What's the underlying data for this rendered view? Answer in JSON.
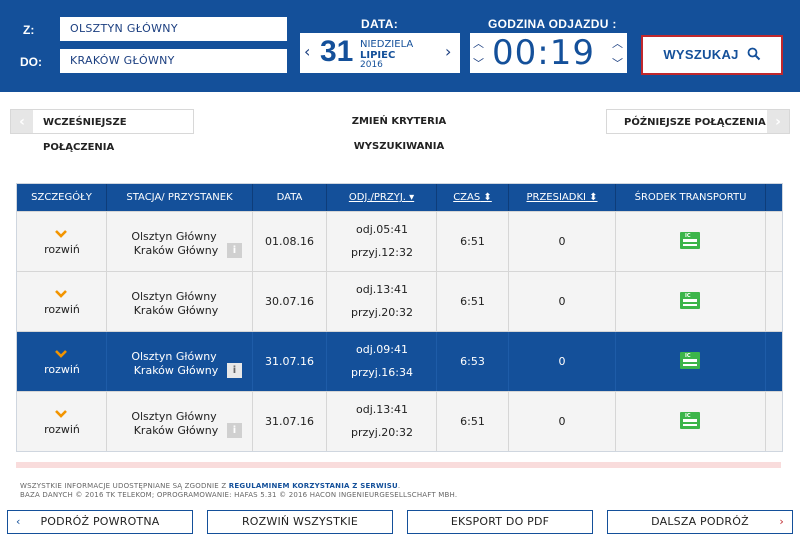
{
  "search": {
    "from_label": "Z:",
    "from_value": "OLSZTYN GŁÓWNY",
    "to_label": "DO:",
    "to_value": "KRAKÓW GŁÓWNY",
    "date_header": "DATA:",
    "day": "31",
    "weekday": "NIEDZIELA",
    "month": "LIPIEC",
    "year": "2016",
    "time_header": "GODZINA ODJAZDU :",
    "time": "00:19",
    "search_button": "WYSZUKAJ"
  },
  "nav": {
    "earlier": "WCZEŚNIEJSZE POŁĄCZENIA",
    "change": "ZMIEŃ KRYTERIA WYSZUKIWANIA",
    "later": "PÓŹNIEJSZE POŁĄCZENIA"
  },
  "table": {
    "headers": [
      "SZCZEGÓŁY",
      "STACJA/ PRZYSTANEK",
      "DATA",
      "ODJ./PRZYJ.",
      "CZAS",
      "PRZESIADKI",
      "ŚRODEK TRANSPORTU"
    ],
    "rows": [
      {
        "details": "rozwiń",
        "from": "Olsztyn Główny",
        "to": "Kraków Główny",
        "date": "01.08.16",
        "dep": "odj.05:41",
        "arr": "przyj.12:32",
        "duration": "6:51",
        "changes": "0"
      },
      {
        "details": "rozwiń",
        "from": "Olsztyn Główny",
        "to": "Kraków Główny",
        "date": "30.07.16",
        "dep": "odj.13:41",
        "arr": "przyj.20:32",
        "duration": "6:51",
        "changes": "0"
      },
      {
        "details": "rozwiń",
        "from": "Olsztyn Główny",
        "to": "Kraków Główny",
        "date": "31.07.16",
        "dep": "odj.09:41",
        "arr": "przyj.16:34",
        "duration": "6:53",
        "changes": "0"
      },
      {
        "details": "rozwiń",
        "from": "Olsztyn Główny",
        "to": "Kraków Główny",
        "date": "31.07.16",
        "dep": "odj.13:41",
        "arr": "przyj.20:32",
        "duration": "6:51",
        "changes": "0"
      }
    ]
  },
  "footer": {
    "line1_prefix": "WSZYSTKIE INFORMACJE UDOSTĘPNIANE SĄ ZGODNIE Z",
    "line1_link": "REGULAMINEM KORZYSTANIA Z SERWISU",
    "line1_suffix": ".",
    "line2": "BAZA DANYCH © 2016 TK TELEKOM; OPROGRAMOWANIE: HAFAS 5.31 © 2016 HACON INGENIEURGESELLSCHAFT MBH."
  },
  "buttons": {
    "return": "PODRÓŻ POWROTNA",
    "expand_all": "ROZWIŃ WSZYSTKIE",
    "export": "EKSPORT DO PDF",
    "continue": "DALSZA PODRÓŻ"
  },
  "colors": {
    "primary": "#14509a",
    "accent": "#c0282d",
    "train_icon": "#3cb54a",
    "chevron": "#f29400"
  },
  "icons": {
    "search": "magnifier-icon",
    "train": "train-icon",
    "info": "info-icon",
    "expand": "chevron-down-icon"
  }
}
